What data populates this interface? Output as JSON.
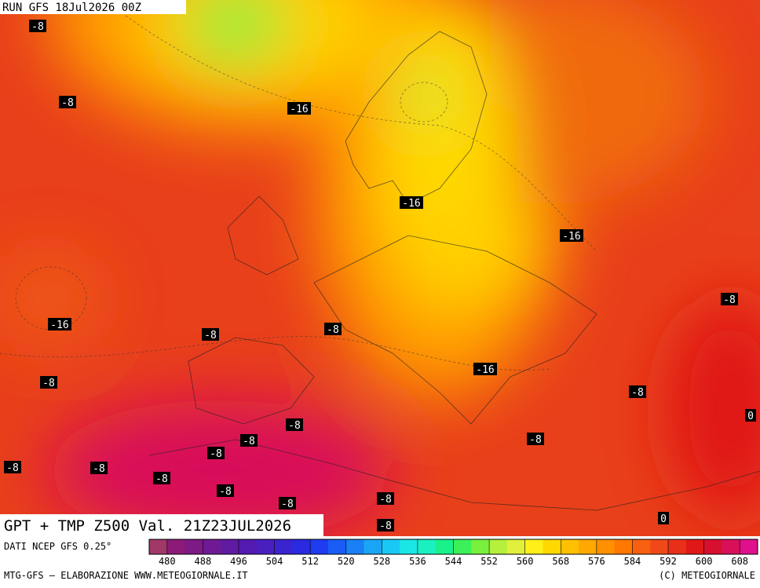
{
  "header": {
    "run": "RUN GFS 18Jul2026 00Z",
    "title": "GPT + TMP Z500 Val. 21Z23JUL2026"
  },
  "map": {
    "labels": [
      "-8",
      "-8",
      "-16",
      "-16",
      "-16",
      "-8",
      "-16",
      "-8",
      "-8",
      "-8",
      "-16",
      "-8",
      "0",
      "-8",
      "-8",
      "-8",
      "-8",
      "-8",
      "-8",
      "-8",
      "-8",
      "-8",
      "-8",
      "-8",
      "0"
    ]
  },
  "footer": {
    "source": "DATI NCEP GFS 0.25°",
    "credit": "MTG-GFS — ELABORAZIONE WWW.METEOGIORNALE.IT",
    "copyright": "(C) METEOGIORNALE"
  },
  "colorbar": {
    "ticks": [
      "480",
      "488",
      "496",
      "504",
      "512",
      "520",
      "528",
      "536",
      "544",
      "552",
      "560",
      "568",
      "576",
      "584",
      "592",
      "600",
      "608"
    ],
    "colors": [
      "#a03868",
      "#8c1a78",
      "#7d1a86",
      "#6f1a94",
      "#611aa2",
      "#521ab0",
      "#4a1fc0",
      "#3a24d0",
      "#2a2ae0",
      "#1f3cf0",
      "#1a5cf5",
      "#1a80f5",
      "#1aa4f5",
      "#1ac8f5",
      "#1ae6e6",
      "#1af0c0",
      "#1af08c",
      "#3cf05a",
      "#78f03c",
      "#b4f03c",
      "#e0f03c",
      "#fff01a",
      "#ffd800",
      "#ffc000",
      "#ffa800",
      "#ff9000",
      "#ff7800",
      "#f86010",
      "#f04818",
      "#e83018",
      "#e01818",
      "#d81030",
      "#d8105a",
      "#e0108c"
    ]
  }
}
